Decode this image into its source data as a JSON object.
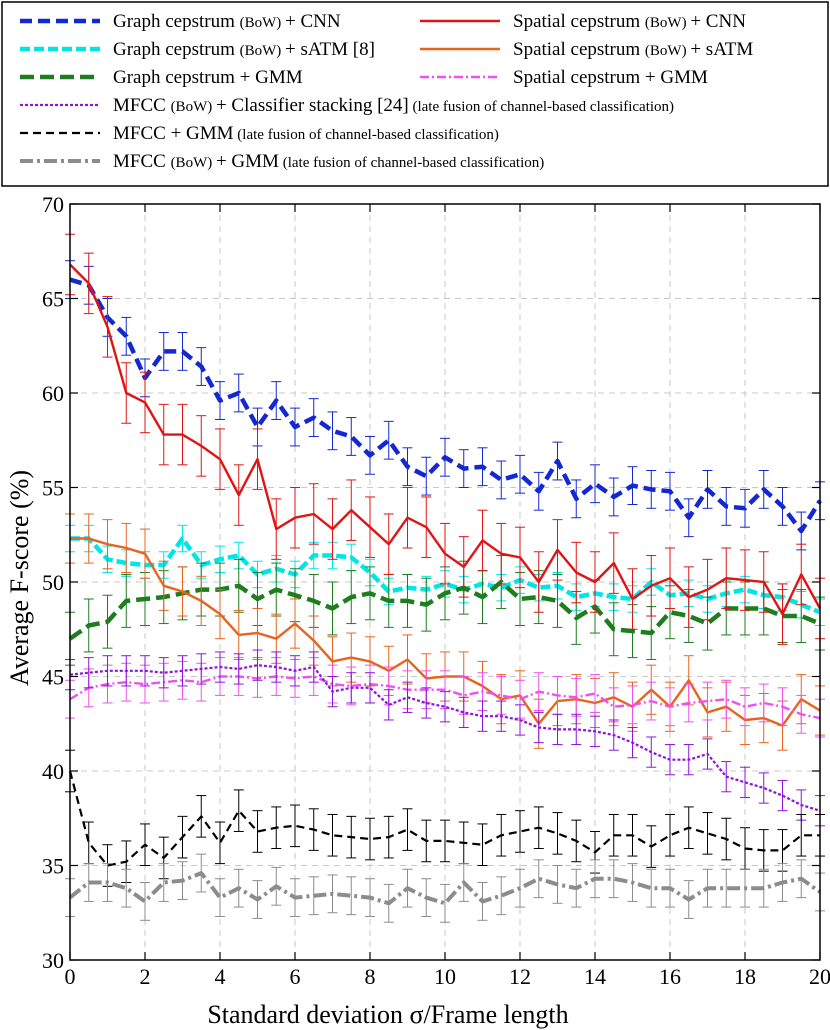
{
  "chart_data": {
    "type": "line",
    "title": "",
    "xlabel": "Standard deviation σ/Frame length",
    "ylabel": "Average F-score (%)",
    "xlim": [
      0,
      20
    ],
    "ylim": [
      30,
      70
    ],
    "xticks": [
      0,
      2,
      4,
      6,
      8,
      10,
      12,
      14,
      16,
      18,
      20
    ],
    "yticks": [
      30,
      35,
      40,
      45,
      50,
      55,
      60,
      65,
      70
    ],
    "grid": true,
    "legend_position": "top",
    "x": [
      0,
      0.5,
      1,
      1.5,
      2,
      2.5,
      3,
      3.5,
      4,
      4.5,
      5,
      5.5,
      6,
      6.5,
      7,
      7.5,
      8,
      8.5,
      9,
      9.5,
      10,
      10.5,
      11,
      11.5,
      12,
      12.5,
      13,
      13.5,
      14,
      14.5,
      15,
      15.5,
      16,
      16.5,
      17,
      17.5,
      18,
      18.5,
      19,
      19.5,
      20
    ],
    "series": [
      {
        "name": "Graph cepstrum (BoW) + CNN",
        "main": "Graph cepstrum",
        "tag": "(BoW)",
        "tail": "+ CNN",
        "color": "#1428d2",
        "dash": "12,6",
        "width": 4.5,
        "err": 1.0,
        "values": [
          66.0,
          65.7,
          64.0,
          63.0,
          60.8,
          62.2,
          62.2,
          61.4,
          59.6,
          60.0,
          58.2,
          59.6,
          58.2,
          58.7,
          58.0,
          57.7,
          56.7,
          57.5,
          56.1,
          55.6,
          56.6,
          56.0,
          56.1,
          55.4,
          55.7,
          54.8,
          56.4,
          54.4,
          55.2,
          54.5,
          55.1,
          54.9,
          54.8,
          53.4,
          54.9,
          54.0,
          53.9,
          54.9,
          54.0,
          52.7,
          54.3
        ]
      },
      {
        "name": "Graph cepstrum (BoW) + sATM [8]",
        "main": "Graph cepstrum",
        "tag": "(BoW)",
        "tail": "+ sATM [8]",
        "color": "#00e6e6",
        "dash": "10,4",
        "width": 4.5,
        "err": 0.7,
        "values": [
          52.3,
          52.3,
          51.2,
          51.0,
          50.9,
          50.9,
          52.3,
          50.9,
          51.2,
          51.4,
          50.4,
          50.7,
          50.4,
          51.4,
          51.4,
          51.3,
          50.5,
          49.5,
          49.7,
          49.6,
          49.9,
          49.6,
          49.9,
          49.7,
          50.1,
          49.7,
          49.8,
          49.2,
          49.4,
          49.2,
          49.1,
          50.0,
          49.3,
          49.4,
          49.1,
          49.4,
          49.6,
          49.3,
          49.2,
          48.8,
          48.4
        ]
      },
      {
        "name": "Graph cepstrum + GMM",
        "main": "Graph cepstrum",
        "tag": "",
        "tail": "+ GMM",
        "color": "#1e7d1e",
        "dash": "14,6",
        "width": 4.5,
        "err": 1.4,
        "values": [
          47.0,
          47.7,
          47.9,
          49.0,
          49.1,
          49.2,
          49.4,
          49.6,
          49.6,
          49.8,
          49.1,
          49.6,
          49.3,
          49.0,
          48.6,
          49.2,
          49.4,
          49.0,
          49.0,
          48.8,
          49.4,
          49.7,
          49.2,
          50.0,
          49.1,
          49.2,
          49.0,
          48.1,
          48.7,
          47.5,
          47.4,
          47.3,
          48.4,
          48.2,
          47.8,
          48.6,
          48.6,
          48.6,
          48.2,
          48.2,
          47.8
        ]
      },
      {
        "name": "Spatial cepstrum (BoW) + CNN",
        "main": "Spatial cepstrum",
        "tag": "(BoW)",
        "tail": "+ CNN",
        "color": "#e01414",
        "dash": "",
        "width": 2.4,
        "err": 1.6,
        "values": [
          66.8,
          65.8,
          63.5,
          60.0,
          59.5,
          57.8,
          57.8,
          57.2,
          56.5,
          54.6,
          56.5,
          52.8,
          53.4,
          53.6,
          52.8,
          53.8,
          52.9,
          52.0,
          53.4,
          52.9,
          51.5,
          50.8,
          52.2,
          51.5,
          51.3,
          50.0,
          51.7,
          50.5,
          50.0,
          51.0,
          49.1,
          49.8,
          50.2,
          49.2,
          49.6,
          50.2,
          50.1,
          50.0,
          48.3,
          50.4,
          48.6
        ]
      },
      {
        "name": "Spatial cepstrum (BoW) + sATM",
        "main": "Spatial cepstrum",
        "tag": "(BoW)",
        "tail": "+ sATM",
        "color": "#e8641e",
        "dash": "",
        "width": 2.4,
        "err": 1.3,
        "values": [
          52.3,
          52.3,
          52.0,
          51.8,
          51.5,
          49.8,
          49.5,
          49.0,
          48.3,
          47.2,
          47.3,
          47.0,
          47.8,
          46.9,
          45.8,
          46.0,
          45.8,
          45.3,
          45.9,
          44.9,
          45.0,
          45.0,
          44.5,
          43.8,
          44.0,
          42.5,
          43.7,
          43.8,
          43.6,
          43.9,
          43.4,
          44.3,
          43.4,
          44.8,
          43.1,
          43.4,
          42.7,
          42.8,
          42.4,
          43.8,
          43.2
        ]
      },
      {
        "name": "Spatial cepstrum + GMM",
        "main": "Spatial cepstrum",
        "tag": "",
        "tail": "+ GMM",
        "color": "#f050f0",
        "dash": "9,3,2,3",
        "width": 2.4,
        "err": 1.0,
        "values": [
          43.8,
          44.4,
          44.6,
          44.7,
          44.6,
          44.7,
          44.8,
          44.7,
          45.0,
          45.0,
          44.9,
          45.0,
          44.9,
          45.0,
          44.6,
          44.5,
          44.6,
          44.5,
          44.3,
          44.3,
          44.3,
          44.0,
          44.2,
          44.0,
          43.8,
          44.2,
          44.0,
          43.9,
          44.1,
          43.4,
          43.5,
          43.7,
          43.4,
          43.6,
          43.7,
          43.8,
          43.4,
          43.6,
          43.4,
          43.0,
          42.8
        ]
      },
      {
        "name": "MFCC (BoW) + Classifier stacking [24] (late fusion of channel-based classification)",
        "main": "MFCC",
        "tag": "(BoW)",
        "tail": "+ Classifier stacking [24]",
        "note": "(late fusion of channel-based classification)",
        "color": "#8c14dc",
        "dash": "3,2",
        "width": 2.2,
        "err": 0.8,
        "values": [
          45.1,
          45.2,
          45.3,
          45.3,
          45.3,
          45.2,
          45.3,
          45.4,
          45.5,
          45.4,
          45.6,
          45.5,
          45.3,
          45.5,
          44.2,
          44.4,
          44.4,
          43.5,
          43.9,
          43.6,
          43.4,
          43.1,
          42.9,
          42.9,
          42.7,
          42.3,
          42.2,
          42.2,
          42.1,
          41.9,
          41.5,
          41.0,
          40.6,
          40.6,
          40.9,
          39.7,
          39.4,
          39.1,
          38.7,
          38.2,
          37.9
        ]
      },
      {
        "name": "MFCC + GMM (late fusion of channel-based classification)",
        "main": "MFCC",
        "tag": "",
        "tail": "+ GMM",
        "note": "(late fusion of channel-based classification)",
        "color": "#000000",
        "dash": "8,5",
        "width": 2.2,
        "err": 1.1,
        "values": [
          40.0,
          36.2,
          35.0,
          35.2,
          36.1,
          35.4,
          36.5,
          37.6,
          36.2,
          37.9,
          36.8,
          37.0,
          37.1,
          36.9,
          36.6,
          36.5,
          36.4,
          36.5,
          36.9,
          36.3,
          36.3,
          36.2,
          36.1,
          36.6,
          36.8,
          37.0,
          36.7,
          36.3,
          35.7,
          36.6,
          36.6,
          36.0,
          36.6,
          37.0,
          36.7,
          36.4,
          35.9,
          35.8,
          35.8,
          36.6,
          36.6
        ]
      },
      {
        "name": "MFCC (BoW) + GMM (late fusion of channel-based classification)",
        "main": "MFCC",
        "tag": "(BoW)",
        "tail": "+ GMM",
        "note": "(late fusion of channel-based classification)",
        "color": "#8c8c8c",
        "dash": "13,4,3,4",
        "width": 4.0,
        "err": 1.0,
        "values": [
          33.3,
          34.1,
          34.1,
          33.8,
          33.1,
          34.1,
          34.2,
          34.6,
          33.3,
          33.8,
          33.2,
          33.9,
          33.3,
          33.4,
          33.5,
          33.4,
          33.3,
          33.0,
          33.8,
          33.3,
          33.0,
          34.1,
          33.1,
          33.4,
          33.8,
          34.3,
          34.0,
          33.8,
          34.3,
          34.3,
          34.1,
          33.8,
          33.8,
          33.2,
          33.8,
          33.8,
          33.8,
          33.8,
          34.1,
          34.3,
          33.6
        ]
      }
    ]
  }
}
